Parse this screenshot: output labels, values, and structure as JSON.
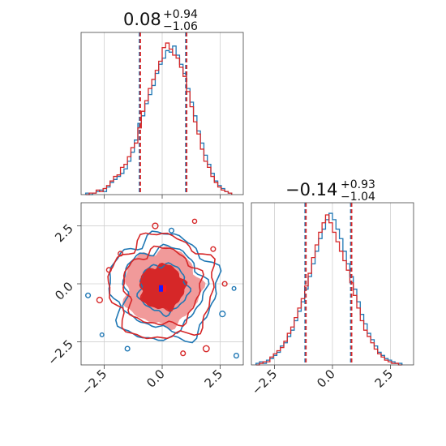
{
  "colors": {
    "blue": "#1f77b4",
    "red": "#d62728",
    "red_fill_outer": "#f19a9a",
    "red_fill_inner": "#d62728"
  },
  "chart_data": [
    {
      "type": "histogram",
      "panel": "marginal-x",
      "title": {
        "median": "0.08",
        "plus": "+0.94",
        "minus": "−1.06"
      },
      "xlim": [
        -3.5,
        3.5
      ],
      "quantiles": [
        -0.98,
        0.08,
        1.02
      ],
      "xticks": [
        -2.5,
        0.0,
        2.5
      ],
      "xticklabels": [
        "",
        "",
        ""
      ],
      "grid": true,
      "series": [
        {
          "color": "#1f77b4",
          "bins": [
            -3.3,
            -3.15,
            -3.0,
            -2.85,
            -2.7,
            -2.55,
            -2.4,
            -2.25,
            -2.1,
            -1.95,
            -1.8,
            -1.65,
            -1.5,
            -1.35,
            -1.2,
            -1.05,
            -0.9,
            -0.75,
            -0.6,
            -0.45,
            -0.3,
            -0.15,
            0.0,
            0.15,
            0.3,
            0.45,
            0.6,
            0.75,
            0.9,
            1.05,
            1.2,
            1.35,
            1.5,
            1.65,
            1.8,
            1.95,
            2.1,
            2.25,
            2.4,
            2.55,
            2.7,
            2.85,
            3.0
          ],
          "counts": [
            1,
            0,
            1,
            2,
            3,
            2,
            5,
            8,
            10,
            12,
            14,
            17,
            22,
            28,
            36,
            47,
            52,
            60,
            66,
            72,
            80,
            86,
            90,
            95,
            94,
            98,
            92,
            86,
            80,
            70,
            61,
            52,
            42,
            34,
            26,
            20,
            14,
            9,
            6,
            4,
            2,
            1
          ]
        },
        {
          "color": "#d62728",
          "bins": [
            -3.3,
            -3.15,
            -3.0,
            -2.85,
            -2.7,
            -2.55,
            -2.4,
            -2.25,
            -2.1,
            -1.95,
            -1.8,
            -1.65,
            -1.5,
            -1.35,
            -1.2,
            -1.05,
            -0.9,
            -0.75,
            -0.6,
            -0.45,
            -0.3,
            -0.15,
            0.0,
            0.15,
            0.3,
            0.45,
            0.6,
            0.75,
            0.9,
            1.05,
            1.2,
            1.35,
            1.5,
            1.65,
            1.8,
            1.95,
            2.1,
            2.25,
            2.4,
            2.55,
            2.7,
            2.85,
            3.0
          ],
          "counts": [
            0,
            1,
            1,
            3,
            2,
            4,
            6,
            9,
            12,
            13,
            18,
            20,
            25,
            31,
            34,
            44,
            55,
            62,
            70,
            76,
            82,
            88,
            97,
            100,
            96,
            92,
            90,
            84,
            78,
            68,
            58,
            48,
            40,
            30,
            22,
            18,
            12,
            8,
            5,
            3,
            2,
            1
          ]
        }
      ]
    },
    {
      "type": "contour",
      "panel": "joint",
      "xlim": [
        -3.5,
        3.5
      ],
      "ylim": [
        -3.5,
        3.5
      ],
      "xticks": [
        -2.5,
        0.0,
        2.5
      ],
      "xticklabels": [
        "−2.5",
        "0.0",
        "2.5"
      ],
      "yticks": [
        -2.5,
        0.0,
        2.5
      ],
      "yticklabels": [
        "−2.5",
        "0.0",
        "2.5"
      ],
      "grid": true,
      "series": [
        {
          "color": "#1f77b4",
          "center": [
            0.05,
            -0.2
          ],
          "radii": [
            1.05,
            1.75,
            2.3
          ]
        },
        {
          "color": "#d62728",
          "center": [
            0.0,
            -0.15
          ],
          "radii": [
            0.95,
            1.65,
            2.25
          ]
        }
      ],
      "markers": [
        {
          "x": 0.0,
          "y": -0.2,
          "colors": [
            "#1f77b4",
            "#d62728"
          ]
        }
      ]
    },
    {
      "type": "histogram",
      "panel": "marginal-y",
      "title": {
        "median": "−0.14",
        "plus": "+0.93",
        "minus": "−1.04"
      },
      "xlim": [
        -3.5,
        3.5
      ],
      "quantiles": [
        -1.18,
        -0.14,
        0.79
      ],
      "xticks": [
        -2.5,
        0.0,
        2.5
      ],
      "xticklabels": [
        "−2.5",
        "0.0",
        "2.5"
      ],
      "grid": true,
      "series": [
        {
          "color": "#1f77b4",
          "bins": [
            -3.3,
            -3.15,
            -3.0,
            -2.85,
            -2.7,
            -2.55,
            -2.4,
            -2.25,
            -2.1,
            -1.95,
            -1.8,
            -1.65,
            -1.5,
            -1.35,
            -1.2,
            -1.05,
            -0.9,
            -0.75,
            -0.6,
            -0.45,
            -0.3,
            -0.15,
            0.0,
            0.15,
            0.3,
            0.45,
            0.6,
            0.75,
            0.9,
            1.05,
            1.2,
            1.35,
            1.5,
            1.65,
            1.8,
            1.95,
            2.1,
            2.25,
            2.4,
            2.55,
            2.7,
            2.85,
            3.0
          ],
          "counts": [
            1,
            2,
            1,
            3,
            4,
            6,
            8,
            12,
            14,
            18,
            22,
            28,
            34,
            40,
            48,
            56,
            64,
            72,
            80,
            86,
            92,
            96,
            92,
            86,
            80,
            72,
            64,
            56,
            48,
            40,
            32,
            26,
            20,
            16,
            12,
            8,
            6,
            4,
            3,
            2,
            1,
            1
          ]
        },
        {
          "color": "#d62728",
          "bins": [
            -3.3,
            -3.15,
            -3.0,
            -2.85,
            -2.7,
            -2.55,
            -2.4,
            -2.25,
            -2.1,
            -1.95,
            -1.8,
            -1.65,
            -1.5,
            -1.35,
            -1.2,
            -1.05,
            -0.9,
            -0.75,
            -0.6,
            -0.45,
            -0.3,
            -0.15,
            0.0,
            0.15,
            0.3,
            0.45,
            0.6,
            0.75,
            0.9,
            1.05,
            1.2,
            1.35,
            1.5,
            1.65,
            1.8,
            1.95,
            2.1,
            2.25,
            2.4,
            2.55,
            2.7,
            2.85,
            3.0
          ],
          "counts": [
            0,
            1,
            2,
            2,
            5,
            7,
            9,
            11,
            15,
            20,
            24,
            30,
            36,
            42,
            50,
            58,
            68,
            76,
            84,
            90,
            95,
            90,
            84,
            78,
            72,
            66,
            60,
            52,
            44,
            36,
            28,
            22,
            18,
            14,
            10,
            7,
            5,
            3,
            2,
            1,
            1,
            0
          ]
        }
      ]
    }
  ]
}
